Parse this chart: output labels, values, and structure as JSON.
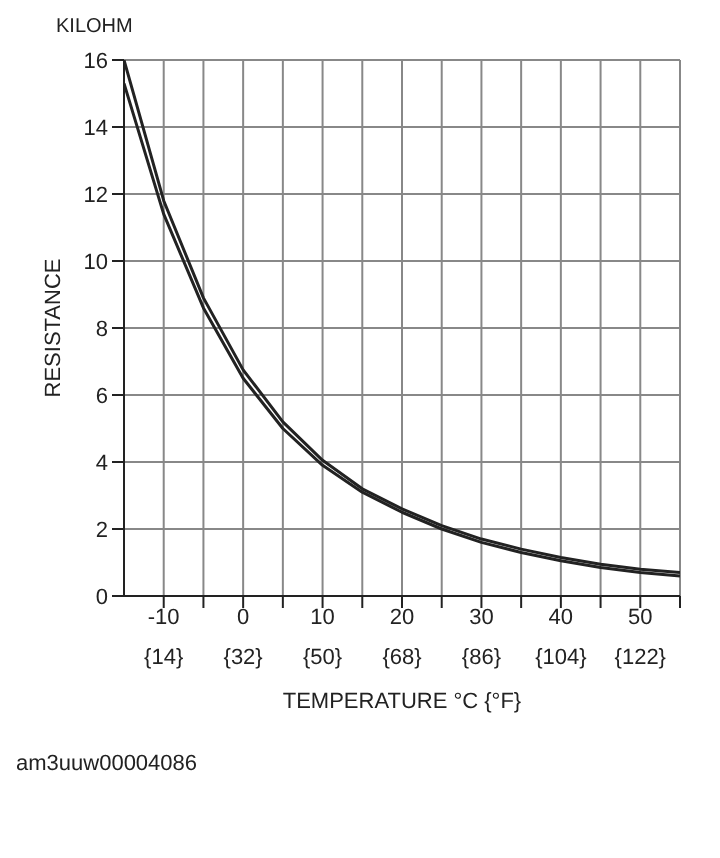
{
  "chart_data": {
    "type": "line",
    "xlabel": "TEMPERATURE    °C {°F}",
    "ylabel": "RESISTANCE",
    "annotations": [
      "KILOHM",
      "am3uuw00004086"
    ],
    "x": [
      -15,
      -10,
      -5,
      0,
      5,
      10,
      15,
      20,
      25,
      30,
      35,
      40,
      45,
      50,
      55
    ],
    "series": [
      {
        "color": "#222222",
        "values": [
          16,
          11.8,
          8.9,
          6.75,
          5.2,
          4.05,
          3.2,
          2.6,
          2.1,
          1.7,
          1.4,
          1.15,
          0.95,
          0.8,
          0.7
        ]
      },
      {
        "color": "#222222",
        "values": [
          15.3,
          11.4,
          8.6,
          6.5,
          5.0,
          3.9,
          3.1,
          2.5,
          2.0,
          1.6,
          1.3,
          1.05,
          0.85,
          0.7,
          0.6
        ]
      }
    ],
    "xlim": [
      -15,
      55
    ],
    "xticks": [
      -10,
      {
        "value": -5,
        "label": null
      },
      0,
      {
        "value": 5,
        "label": null
      },
      10,
      {
        "value": 15,
        "label": null
      },
      20,
      {
        "value": 25,
        "label": null
      },
      30,
      {
        "value": 35,
        "label": null
      },
      40,
      {
        "value": 45,
        "label": null
      },
      50,
      {
        "value": 55,
        "label": null
      }
    ],
    "x2lim": [
      5,
      131
    ],
    "x2ticks": [
      {
        "value": 14,
        "label": "{14}"
      },
      {
        "value": 32,
        "label": "{32}"
      },
      {
        "value": 50,
        "label": "{50}"
      },
      {
        "value": 68,
        "label": "{68}"
      },
      {
        "value": 86,
        "label": "{86}"
      },
      {
        "value": 104,
        "label": "{104}"
      },
      {
        "value": 122,
        "label": "{122}"
      }
    ],
    "ylim": [
      0,
      16
    ],
    "yticks": [
      0,
      2,
      4,
      6,
      8,
      10,
      12,
      14,
      16
    ],
    "grid": true,
    "marker": "none",
    "line_style": "solid",
    "legend": false
  }
}
